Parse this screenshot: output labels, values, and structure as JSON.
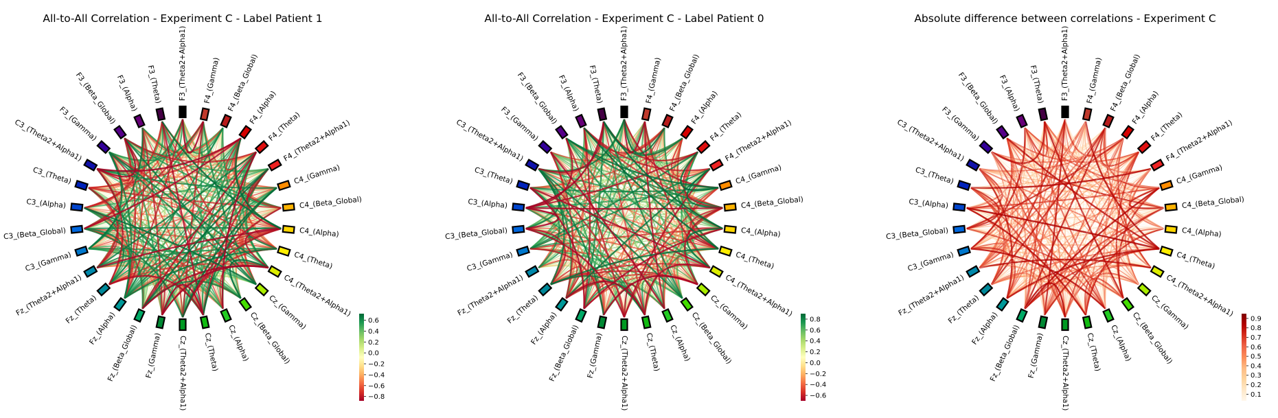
{
  "nodes": [
    "F3_(Theta2+Alpha1)",
    "F4_(Gamma)",
    "F4_(Beta_Global)",
    "F4_(Alpha)",
    "F4_(Theta)",
    "F4_(Theta2+Alpha1)",
    "C4_(Gamma)",
    "C4_(Beta_Global)",
    "C4_(Alpha)",
    "C4_(Theta)",
    "C4_(Theta2+Alpha1)",
    "Cz_(Gamma)",
    "Cz_(Beta_Global)",
    "Cz_(Alpha)",
    "Cz_(Theta)",
    "Cz_(Theta2+Alpha1)",
    "Fz_(Gamma)",
    "Fz_(Beta_Global)",
    "Fz_(Alpha)",
    "Fz_(Theta)",
    "Fz_(Theta2+Alpha1)",
    "C3_(Gamma)",
    "C3_(Beta_Global)",
    "C3_(Alpha)",
    "C3_(Theta)",
    "C3_(Theta2+Alpha1)",
    "F3_(Gamma)",
    "F3_(Beta_Global)",
    "F3_(Alpha)",
    "F3_(Theta)"
  ],
  "node_colors": [
    "#000000",
    "#c0392b",
    "#b71c1c",
    "#d50000",
    "#e01010",
    "#ee2222",
    "#ff8c00",
    "#ffb300",
    "#ffd600",
    "#ffee00",
    "#ddee00",
    "#aaee00",
    "#44dd00",
    "#22cc22",
    "#11bb11",
    "#009922",
    "#008833",
    "#00aa66",
    "#009999",
    "#008899",
    "#0088aa",
    "#0077cc",
    "#0066dd",
    "#0044cc",
    "#0022bb",
    "#1111aa",
    "#330099",
    "#550088",
    "#660077",
    "#440044"
  ],
  "panels": [
    {
      "title": "All-to-All Correlation - Experiment C - Label Patient 1",
      "colormap": "RdYlGn",
      "colorbar_ticks": [
        "0.6",
        "0.4",
        "0.2",
        "0.0",
        "−0.2",
        "−0.4",
        "−0.6",
        "−0.8"
      ],
      "colorbar_range": [
        -0.88,
        0.72
      ]
    },
    {
      "title": "All-to-All Correlation - Experiment C - Label Patient 0",
      "colormap": "RdYlGn",
      "colorbar_ticks": [
        "0.8",
        "0.6",
        "0.4",
        "0.2",
        "0.0",
        "−0.2",
        "−0.4",
        "−0.6"
      ],
      "colorbar_range": [
        -0.7,
        0.9
      ]
    },
    {
      "title": "Absolute difference between correlations - Experiment C",
      "colormap": "OrRd",
      "colorbar_ticks": [
        "0.9",
        "0.8",
        "0.7",
        "0.6",
        "0.5",
        "0.4",
        "0.3",
        "0.2",
        "0.1"
      ],
      "colorbar_range": [
        0.03,
        0.95
      ]
    }
  ]
}
